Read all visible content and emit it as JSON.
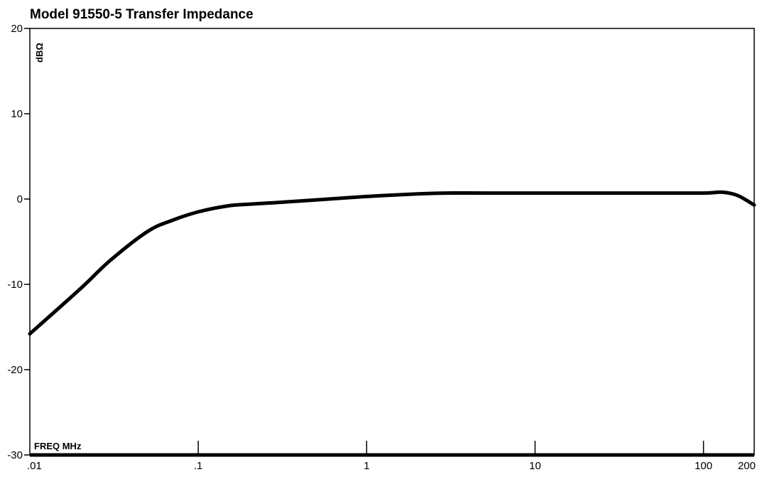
{
  "chart_data": {
    "type": "line",
    "title": "Model 91550-5   Transfer Impedance",
    "xlabel": "FREQ MHz",
    "ylabel": "dBΩ",
    "x_scale": "log",
    "xlim": [
      0.01,
      200
    ],
    "ylim": [
      -30,
      20
    ],
    "x_ticks": [
      0.01,
      0.1,
      1,
      10,
      100,
      200
    ],
    "x_tick_labels": [
      ".01",
      ".1",
      "1",
      "10",
      "100",
      "200"
    ],
    "y_ticks": [
      20,
      10,
      0,
      -10,
      -20,
      -30
    ],
    "y_tick_labels": [
      "20",
      "10",
      "0",
      "-10",
      "-20",
      "-30"
    ],
    "grid": false,
    "series": [
      {
        "x": [
          0.01,
          0.02,
          0.03,
          0.05,
          0.07,
          0.1,
          0.15,
          0.2,
          0.3,
          0.5,
          1,
          2,
          3,
          5,
          10,
          20,
          50,
          100,
          130,
          160,
          200
        ],
        "y": [
          -15.8,
          -10.5,
          -7.2,
          -3.8,
          -2.5,
          -1.5,
          -0.8,
          -0.6,
          -0.4,
          -0.1,
          0.3,
          0.6,
          0.7,
          0.7,
          0.7,
          0.7,
          0.7,
          0.7,
          0.8,
          0.4,
          -0.7
        ]
      }
    ]
  }
}
